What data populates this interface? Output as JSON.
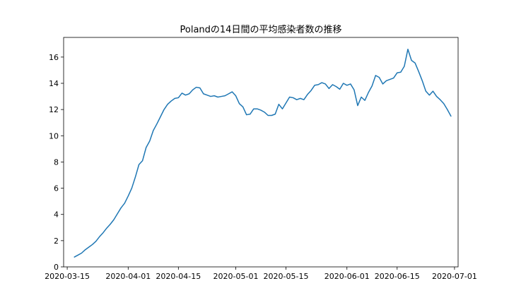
{
  "chart_data": {
    "type": "line",
    "title": "Polandの14日間の平均感染者数の推移",
    "xlabel": "",
    "ylabel": "",
    "x_axis": {
      "type": "date",
      "range": [
        "2020-03-14",
        "2020-07-02"
      ],
      "ticks": [
        "2020-03-15",
        "2020-04-01",
        "2020-04-15",
        "2020-05-01",
        "2020-05-15",
        "2020-06-01",
        "2020-06-15",
        "2020-07-01"
      ]
    },
    "y_axis": {
      "range": [
        0,
        17.5
      ],
      "ticks": [
        0,
        2,
        4,
        6,
        8,
        10,
        12,
        14,
        16
      ]
    },
    "grid": false,
    "legend": "none",
    "series": [
      {
        "color": "#1f77b4",
        "points": [
          [
            "2020-03-17",
            0.75
          ],
          [
            "2020-03-18",
            0.9
          ],
          [
            "2020-03-19",
            1.05
          ],
          [
            "2020-03-20",
            1.3
          ],
          [
            "2020-03-21",
            1.5
          ],
          [
            "2020-03-22",
            1.7
          ],
          [
            "2020-03-23",
            1.95
          ],
          [
            "2020-03-24",
            2.3
          ],
          [
            "2020-03-25",
            2.6
          ],
          [
            "2020-03-26",
            2.95
          ],
          [
            "2020-03-27",
            3.25
          ],
          [
            "2020-03-28",
            3.6
          ],
          [
            "2020-03-29",
            4.05
          ],
          [
            "2020-03-30",
            4.5
          ],
          [
            "2020-03-31",
            4.85
          ],
          [
            "2020-04-01",
            5.4
          ],
          [
            "2020-04-02",
            6.0
          ],
          [
            "2020-04-03",
            6.85
          ],
          [
            "2020-04-04",
            7.8
          ],
          [
            "2020-04-05",
            8.1
          ],
          [
            "2020-04-06",
            9.1
          ],
          [
            "2020-04-07",
            9.6
          ],
          [
            "2020-04-08",
            10.4
          ],
          [
            "2020-04-09",
            10.9
          ],
          [
            "2020-04-10",
            11.45
          ],
          [
            "2020-04-11",
            12.0
          ],
          [
            "2020-04-12",
            12.4
          ],
          [
            "2020-04-13",
            12.65
          ],
          [
            "2020-04-14",
            12.85
          ],
          [
            "2020-04-15",
            12.9
          ],
          [
            "2020-04-16",
            13.25
          ],
          [
            "2020-04-17",
            13.1
          ],
          [
            "2020-04-18",
            13.2
          ],
          [
            "2020-04-19",
            13.5
          ],
          [
            "2020-04-20",
            13.7
          ],
          [
            "2020-04-21",
            13.65
          ],
          [
            "2020-04-22",
            13.2
          ],
          [
            "2020-04-23",
            13.1
          ],
          [
            "2020-04-24",
            13.0
          ],
          [
            "2020-04-25",
            13.05
          ],
          [
            "2020-04-26",
            12.95
          ],
          [
            "2020-04-27",
            13.0
          ],
          [
            "2020-04-28",
            13.05
          ],
          [
            "2020-04-29",
            13.2
          ],
          [
            "2020-04-30",
            13.35
          ],
          [
            "2020-05-01",
            13.05
          ],
          [
            "2020-05-02",
            12.45
          ],
          [
            "2020-05-03",
            12.2
          ],
          [
            "2020-05-04",
            11.6
          ],
          [
            "2020-05-05",
            11.65
          ],
          [
            "2020-05-06",
            12.05
          ],
          [
            "2020-05-07",
            12.05
          ],
          [
            "2020-05-08",
            11.95
          ],
          [
            "2020-05-09",
            11.8
          ],
          [
            "2020-05-10",
            11.55
          ],
          [
            "2020-05-11",
            11.55
          ],
          [
            "2020-05-12",
            11.65
          ],
          [
            "2020-05-13",
            12.4
          ],
          [
            "2020-05-14",
            12.05
          ],
          [
            "2020-05-15",
            12.5
          ],
          [
            "2020-05-16",
            12.95
          ],
          [
            "2020-05-17",
            12.9
          ],
          [
            "2020-05-18",
            12.75
          ],
          [
            "2020-05-19",
            12.85
          ],
          [
            "2020-05-20",
            12.75
          ],
          [
            "2020-05-21",
            13.15
          ],
          [
            "2020-05-22",
            13.45
          ],
          [
            "2020-05-23",
            13.85
          ],
          [
            "2020-05-24",
            13.9
          ],
          [
            "2020-05-25",
            14.05
          ],
          [
            "2020-05-26",
            13.95
          ],
          [
            "2020-05-27",
            13.6
          ],
          [
            "2020-05-28",
            13.9
          ],
          [
            "2020-05-29",
            13.75
          ],
          [
            "2020-05-30",
            13.55
          ],
          [
            "2020-05-31",
            14.0
          ],
          [
            "2020-06-01",
            13.85
          ],
          [
            "2020-06-02",
            13.95
          ],
          [
            "2020-06-03",
            13.5
          ],
          [
            "2020-06-04",
            12.3
          ],
          [
            "2020-06-05",
            12.95
          ],
          [
            "2020-06-06",
            12.7
          ],
          [
            "2020-06-07",
            13.3
          ],
          [
            "2020-06-08",
            13.8
          ],
          [
            "2020-06-09",
            14.6
          ],
          [
            "2020-06-10",
            14.45
          ],
          [
            "2020-06-11",
            13.95
          ],
          [
            "2020-06-12",
            14.2
          ],
          [
            "2020-06-13",
            14.3
          ],
          [
            "2020-06-14",
            14.4
          ],
          [
            "2020-06-15",
            14.8
          ],
          [
            "2020-06-16",
            14.85
          ],
          [
            "2020-06-17",
            15.3
          ],
          [
            "2020-06-18",
            16.6
          ],
          [
            "2020-06-19",
            15.75
          ],
          [
            "2020-06-20",
            15.55
          ],
          [
            "2020-06-21",
            14.9
          ],
          [
            "2020-06-22",
            14.2
          ],
          [
            "2020-06-23",
            13.4
          ],
          [
            "2020-06-24",
            13.1
          ],
          [
            "2020-06-25",
            13.4
          ],
          [
            "2020-06-26",
            13.0
          ],
          [
            "2020-06-27",
            12.75
          ],
          [
            "2020-06-28",
            12.45
          ],
          [
            "2020-06-29",
            12.0
          ],
          [
            "2020-06-30",
            11.5
          ]
        ]
      }
    ]
  }
}
